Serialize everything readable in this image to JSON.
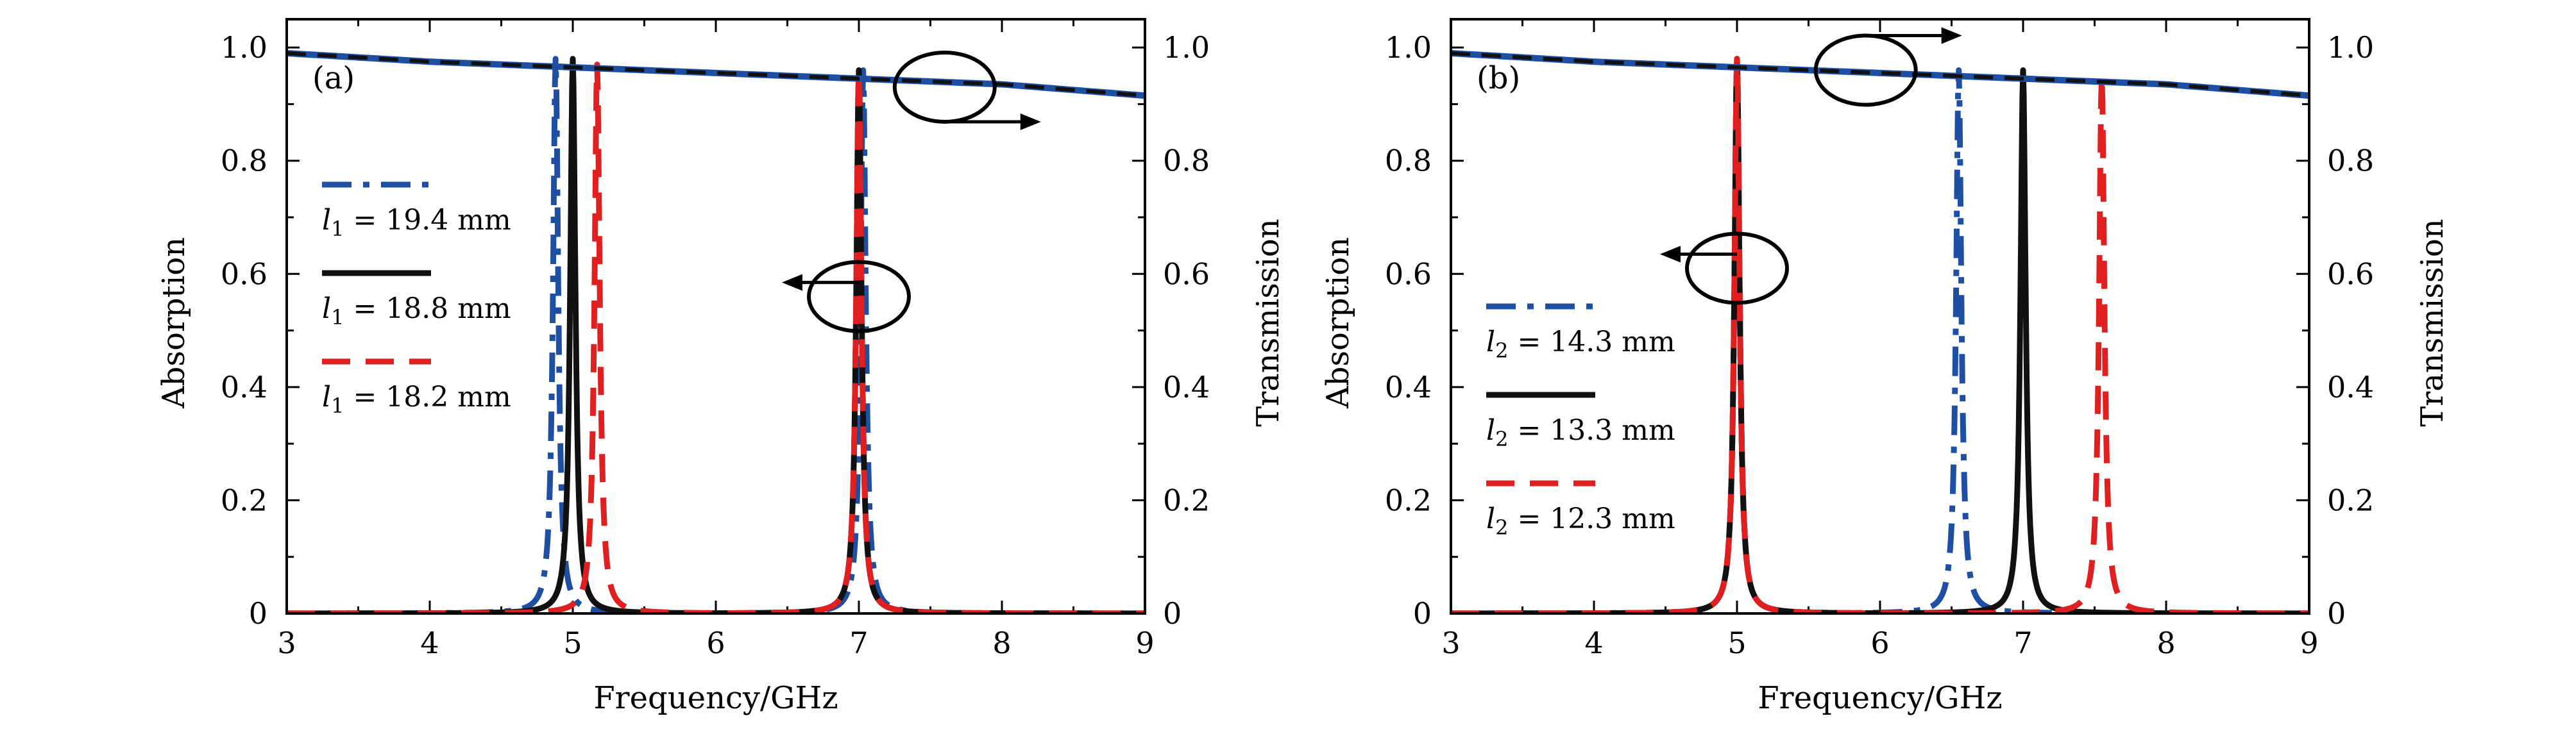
{
  "colors": {
    "blue": "#1f4fa3",
    "black": "#111111",
    "red": "#e02020",
    "axis": "#000000"
  },
  "chart_data": [
    {
      "type": "line",
      "panel_label": "(a)",
      "xlabel": "Frequency/GHz",
      "ylabel": "Absorption",
      "ylabel_right": "Transmission",
      "xlim": [
        3,
        9
      ],
      "ylim": [
        0,
        1.05
      ],
      "xticks": [
        "3",
        "4",
        "5",
        "6",
        "7",
        "8",
        "9"
      ],
      "yticks": [
        "0",
        "0.2",
        "0.4",
        "0.6",
        "0.8",
        "1.0"
      ],
      "yticks_right": [
        "0",
        "0.2",
        "0.4",
        "0.6",
        "0.8",
        "1.0"
      ],
      "grid": false,
      "legend_position": "left",
      "transmission": {
        "x": [
          3.0,
          4.0,
          5.0,
          6.0,
          7.0,
          8.0,
          9.0
        ],
        "y": [
          0.99,
          0.975,
          0.965,
          0.955,
          0.945,
          0.935,
          0.915
        ]
      },
      "series": [
        {
          "name": "l1 = 19.4 mm",
          "sub": "1",
          "value": "= 19.4 mm",
          "style": "dashdot",
          "color": "#1f4fa3",
          "peaks": [
            [
              4.88,
              0.98,
              0.022
            ],
            [
              7.03,
              0.96,
              0.022
            ]
          ]
        },
        {
          "name": "l1 = 18.8 mm",
          "sub": "1",
          "value": "= 18.8 mm",
          "style": "solid",
          "color": "#111111",
          "peaks": [
            [
              5.0,
              0.98,
              0.022
            ],
            [
              7.0,
              0.96,
              0.022
            ]
          ]
        },
        {
          "name": "l1 = 18.2 mm",
          "sub": "1",
          "value": "= 18.2 mm",
          "style": "dashed",
          "color": "#e02020",
          "peaks": [
            [
              5.17,
              0.97,
              0.022
            ],
            [
              7.0,
              0.96,
              0.022
            ]
          ]
        }
      ],
      "annotations": [
        {
          "kind": "ellipse-arrow-right",
          "target": "transmission",
          "x": 7.6,
          "y": 0.93
        },
        {
          "kind": "ellipse-arrow-left",
          "target": "absorption",
          "x": 7.0,
          "y": 0.56
        }
      ]
    },
    {
      "type": "line",
      "panel_label": "(b)",
      "xlabel": "Frequency/GHz",
      "ylabel": "Absorption",
      "ylabel_right": "Transmission",
      "xlim": [
        3,
        9
      ],
      "ylim": [
        0,
        1.05
      ],
      "xticks": [
        "3",
        "4",
        "5",
        "6",
        "7",
        "8",
        "9"
      ],
      "yticks": [
        "0",
        "0.2",
        "0.4",
        "0.6",
        "0.8",
        "1.0"
      ],
      "yticks_right": [
        "0",
        "0.2",
        "0.4",
        "0.6",
        "0.8",
        "1.0"
      ],
      "grid": false,
      "legend_position": "left",
      "transmission": {
        "x": [
          3.0,
          4.0,
          5.0,
          6.0,
          7.0,
          8.0,
          9.0
        ],
        "y": [
          0.99,
          0.975,
          0.965,
          0.955,
          0.945,
          0.935,
          0.915
        ]
      },
      "series": [
        {
          "name": "l2 = 14.3 mm",
          "sub": "2",
          "value": "= 14.3 mm",
          "style": "dashdot",
          "color": "#1f4fa3",
          "peaks": [
            [
              5.0,
              0.98,
              0.022
            ],
            [
              6.55,
              0.96,
              0.022
            ]
          ]
        },
        {
          "name": "l2 = 13.3 mm",
          "sub": "2",
          "value": "= 13.3 mm",
          "style": "solid",
          "color": "#111111",
          "peaks": [
            [
              5.0,
              0.98,
              0.022
            ],
            [
              7.0,
              0.96,
              0.022
            ]
          ]
        },
        {
          "name": "l2 = 12.3 mm",
          "sub": "2",
          "value": "= 12.3 mm",
          "style": "dashed",
          "color": "#e02020",
          "peaks": [
            [
              5.0,
              0.98,
              0.022
            ],
            [
              7.55,
              0.95,
              0.022
            ]
          ]
        }
      ],
      "annotations": [
        {
          "kind": "ellipse-arrow-right",
          "target": "transmission",
          "x": 5.9,
          "y": 0.96
        },
        {
          "kind": "ellipse-arrow-left",
          "target": "absorption",
          "x": 5.0,
          "y": 0.61
        }
      ]
    }
  ]
}
